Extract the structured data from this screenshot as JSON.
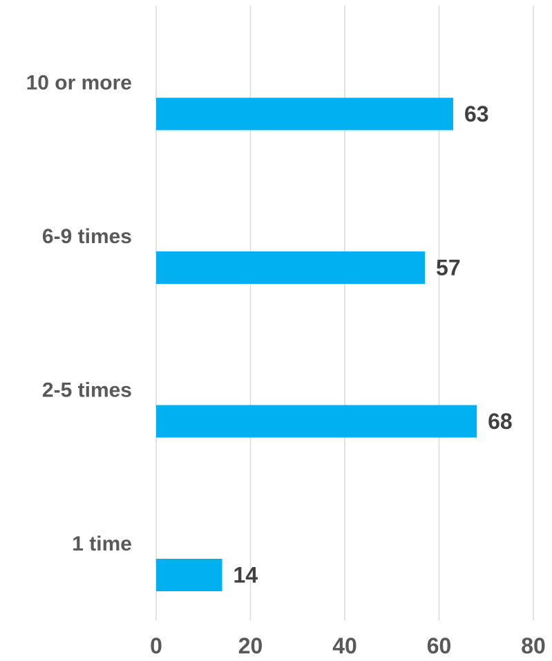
{
  "chart_data": {
    "type": "bar",
    "orientation": "horizontal",
    "categories": [
      "10 or more",
      "6-9 times",
      "2-5 times",
      "1 time"
    ],
    "values": [
      63,
      57,
      68,
      14
    ],
    "data_labels": [
      "63",
      "57",
      "68",
      "14"
    ],
    "title": "",
    "xlabel": "",
    "ylabel": "",
    "xlim": [
      0,
      80
    ],
    "x_ticks": [
      0,
      20,
      40,
      60,
      80
    ],
    "x_tick_labels": [
      "0",
      "20",
      "40",
      "60",
      "80"
    ],
    "grid": "vertical",
    "legend": "none",
    "colors": {
      "bar": "#00b0f0",
      "gridline": "#d9d9d9",
      "axis_text": "#595959",
      "data_label_text": "#404040"
    }
  }
}
